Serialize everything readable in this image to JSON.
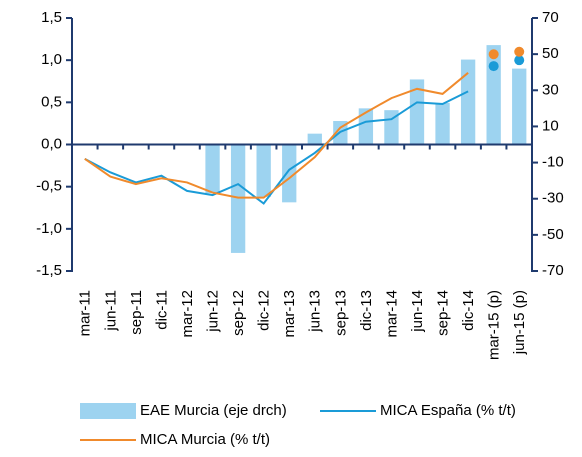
{
  "chart_data": {
    "type": "bar-line",
    "categories": [
      "mar-11",
      "jun-11",
      "sep-11",
      "dic-11",
      "mar-12",
      "jun-12",
      "sep-12",
      "dic-12",
      "mar-13",
      "jun-13",
      "sep-13",
      "dic-13",
      "mar-14",
      "jun-14",
      "sep-14",
      "dic-14",
      "mar-15 (p)",
      "jun-15 (p)"
    ],
    "ylim": [
      -1.5,
      1.5
    ],
    "yticks": [
      {
        "value": -1.5,
        "label": "-1,5"
      },
      {
        "value": -1,
        "label": "-1,0"
      },
      {
        "value": -0.5,
        "label": "-0,5"
      },
      {
        "value": 0,
        "label": "0,0"
      },
      {
        "value": 0.5,
        "label": "0,5"
      },
      {
        "value": 1,
        "label": "1,0"
      },
      {
        "value": 1.5,
        "label": "1,5"
      }
    ],
    "y2lim": [
      -70,
      70
    ],
    "y2ticks": [
      -70,
      -50,
      -30,
      -10,
      10,
      30,
      50,
      70
    ],
    "series": [
      {
        "name": "EAE Murcia (eje drch)",
        "type": "bar",
        "axis": "y2",
        "color": "#9dd3f0",
        "values": [
          null,
          null,
          null,
          null,
          null,
          -27,
          -60,
          -29,
          -32,
          6,
          13,
          20,
          19,
          36,
          23,
          47,
          55,
          42
        ]
      },
      {
        "name": "MICA España (% t/t)",
        "type": "line",
        "color": "#1a9bd7",
        "values": [
          -0.17,
          -0.33,
          -0.45,
          -0.37,
          -0.55,
          -0.6,
          -0.47,
          -0.7,
          -0.3,
          -0.1,
          0.15,
          0.27,
          0.3,
          0.5,
          0.48,
          0.63,
          null,
          null
        ],
        "projection": [
          null,
          null,
          null,
          null,
          null,
          null,
          null,
          null,
          null,
          null,
          null,
          null,
          null,
          null,
          null,
          null,
          0.93,
          1.0
        ]
      },
      {
        "name": "MICA Murcia (% t/t)",
        "type": "line",
        "color": "#f08a2c",
        "values": [
          -0.17,
          -0.38,
          -0.47,
          -0.4,
          -0.45,
          -0.57,
          -0.63,
          -0.63,
          -0.4,
          -0.15,
          0.2,
          0.38,
          0.55,
          0.66,
          0.6,
          0.85,
          null,
          null
        ],
        "projection": [
          null,
          null,
          null,
          null,
          null,
          null,
          null,
          null,
          null,
          null,
          null,
          null,
          null,
          null,
          null,
          null,
          1.07,
          1.1
        ]
      }
    ]
  }
}
